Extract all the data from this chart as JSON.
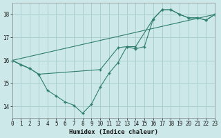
{
  "title": "",
  "xlabel": "Humidex (Indice chaleur)",
  "bg_color": "#cce8e8",
  "line_color": "#2e7d6e",
  "grid_color": "#aacfcf",
  "xlim": [
    0,
    23
  ],
  "ylim": [
    13.5,
    18.5
  ],
  "yticks": [
    14,
    15,
    16,
    17,
    18
  ],
  "xticks": [
    0,
    1,
    2,
    3,
    4,
    5,
    6,
    7,
    8,
    9,
    10,
    11,
    12,
    13,
    14,
    15,
    16,
    17,
    18,
    19,
    20,
    21,
    22,
    23
  ],
  "line1_x": [
    0,
    1,
    2,
    3,
    4,
    5,
    6,
    7,
    8,
    9,
    10,
    11,
    12,
    13,
    14,
    15,
    16,
    17,
    18,
    19,
    20,
    21,
    22,
    23
  ],
  "line1_y": [
    16.0,
    15.8,
    15.65,
    15.4,
    14.7,
    14.45,
    14.2,
    14.05,
    13.7,
    14.1,
    14.85,
    15.45,
    15.9,
    16.6,
    16.5,
    16.6,
    17.8,
    18.2,
    18.2,
    18.0,
    17.85,
    17.85,
    17.75,
    18.0
  ],
  "line2_x": [
    0,
    2,
    3,
    10,
    12,
    13,
    14,
    16,
    17,
    18,
    19,
    20,
    21,
    22,
    23
  ],
  "line2_y": [
    16.0,
    15.65,
    15.4,
    15.6,
    16.55,
    16.6,
    16.6,
    17.8,
    18.2,
    18.2,
    18.0,
    17.85,
    17.85,
    17.75,
    18.0
  ],
  "line3_x": [
    0,
    23
  ],
  "line3_y": [
    16.0,
    18.0
  ]
}
